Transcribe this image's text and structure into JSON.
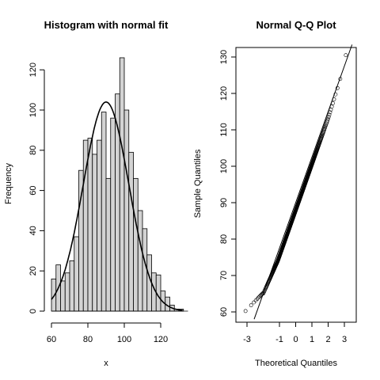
{
  "chart_data": [
    {
      "type": "bar",
      "title": "Histogram with normal fit",
      "xlabel": "x",
      "ylabel": "Frequency",
      "xlim": [
        60,
        135
      ],
      "ylim": [
        0,
        130
      ],
      "x_ticks": [
        "60",
        "80",
        "100",
        "120"
      ],
      "y_ticks": [
        "0",
        "20",
        "40",
        "60",
        "80",
        "100",
        "120"
      ],
      "bin_width": 2.5,
      "bin_start": 60,
      "values": [
        16,
        23,
        15,
        19,
        25,
        37,
        70,
        85,
        86,
        78,
        85,
        99,
        66,
        96,
        108,
        126,
        100,
        79,
        66,
        50,
        41,
        28,
        19,
        18,
        10,
        7,
        3,
        1,
        1,
        0
      ],
      "fit": {
        "type": "normal-curve",
        "mean": 90,
        "sd": 12.5,
        "peak": 104
      }
    },
    {
      "type": "scatter",
      "title": "Normal Q-Q Plot",
      "xlabel": "Theoretical Quantiles",
      "ylabel": "Sample Quantiles",
      "xlim": [
        -3.5,
        3.5
      ],
      "ylim": [
        58,
        133
      ],
      "x_ticks": [
        "-3",
        "-1",
        "0",
        "1",
        "2",
        "3"
      ],
      "y_ticks": [
        "60",
        "70",
        "80",
        "90",
        "100",
        "110",
        "120",
        "130"
      ],
      "reference_line": {
        "intercept": 90,
        "slope": 12.5
      },
      "n_points": 500
    }
  ]
}
